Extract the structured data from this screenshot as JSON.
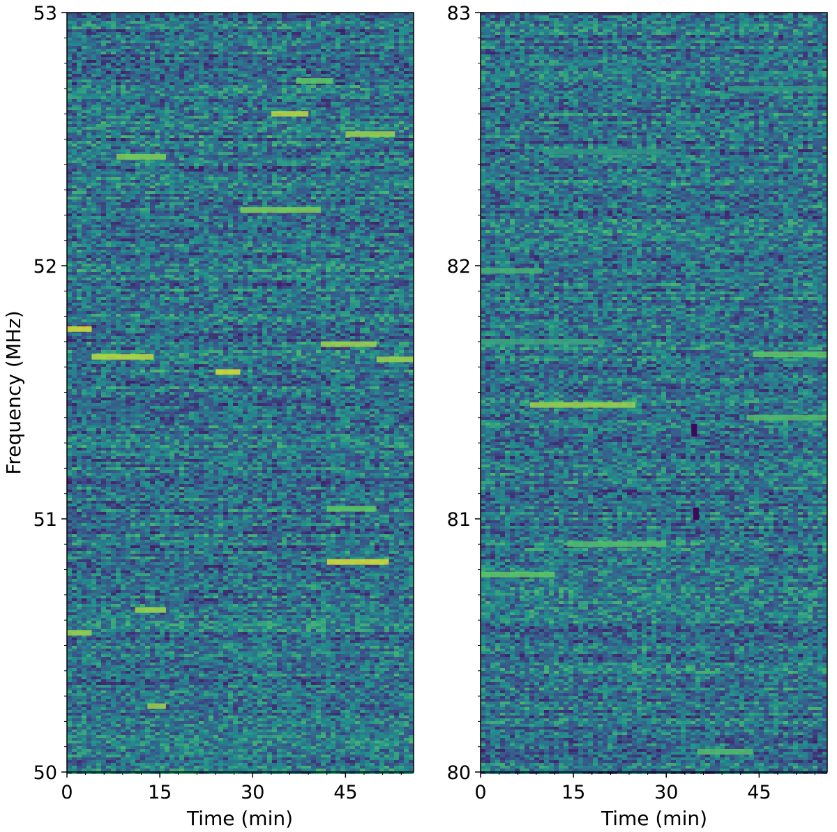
{
  "colors": {
    "colormap": [
      "#440154",
      "#3b528b",
      "#21918c",
      "#5ec962",
      "#fde725"
    ],
    "background": "#2b6f8e",
    "frame": "#000000"
  },
  "chart_data": [
    {
      "type": "heatmap",
      "title": "",
      "xlabel": "Time (min)",
      "ylabel": "Frequency (MHz)",
      "xlim": [
        0,
        56
      ],
      "ylim": [
        50,
        53
      ],
      "x_ticks": [
        "0",
        "15",
        "30",
        "45"
      ],
      "y_ticks": [
        "50",
        "51",
        "52",
        "53"
      ],
      "grid": false,
      "colormap": "viridis",
      "bright_features": [
        {
          "t0": 0,
          "t1": 4,
          "f": 51.75,
          "level": 0.95
        },
        {
          "t0": 4,
          "t1": 14,
          "f": 51.64,
          "level": 0.9
        },
        {
          "t0": 24,
          "t1": 28,
          "f": 51.58,
          "level": 0.95
        },
        {
          "t0": 33,
          "t1": 39,
          "f": 52.6,
          "level": 0.9
        },
        {
          "t0": 42,
          "t1": 52,
          "f": 50.83,
          "level": 0.95
        },
        {
          "t0": 41,
          "t1": 50,
          "f": 51.69,
          "level": 0.85
        },
        {
          "t0": 50,
          "t1": 56,
          "f": 51.63,
          "level": 0.85
        },
        {
          "t0": 28,
          "t1": 41,
          "f": 52.22,
          "level": 0.8
        },
        {
          "t0": 8,
          "t1": 16,
          "f": 52.43,
          "level": 0.8
        },
        {
          "t0": 11,
          "t1": 16,
          "f": 50.64,
          "level": 0.85
        },
        {
          "t0": 0,
          "t1": 4,
          "f": 50.55,
          "level": 0.85
        },
        {
          "t0": 13,
          "t1": 16,
          "f": 50.26,
          "level": 0.85
        },
        {
          "t0": 42,
          "t1": 50,
          "f": 51.04,
          "level": 0.75
        },
        {
          "t0": 37,
          "t1": 43,
          "f": 52.73,
          "level": 0.75
        },
        {
          "t0": 45,
          "t1": 53,
          "f": 52.52,
          "level": 0.85
        }
      ]
    },
    {
      "type": "heatmap",
      "title": "",
      "xlabel": "Time (min)",
      "ylabel": "",
      "xlim": [
        0,
        56
      ],
      "ylim": [
        80,
        83
      ],
      "x_ticks": [
        "0",
        "15",
        "30",
        "45"
      ],
      "y_ticks": [
        "80",
        "81",
        "82",
        "83"
      ],
      "grid": false,
      "colormap": "viridis",
      "bright_features": [
        {
          "t0": 8,
          "t1": 25,
          "f": 81.45,
          "level": 0.85
        },
        {
          "t0": 44,
          "t1": 56,
          "f": 81.65,
          "level": 0.75
        },
        {
          "t0": 43,
          "t1": 56,
          "f": 81.4,
          "level": 0.7
        },
        {
          "t0": 0,
          "t1": 12,
          "f": 80.78,
          "level": 0.75
        },
        {
          "t0": 14,
          "t1": 30,
          "f": 80.9,
          "level": 0.7
        },
        {
          "t0": 0,
          "t1": 10,
          "f": 81.98,
          "level": 0.65
        },
        {
          "t0": 35,
          "t1": 44,
          "f": 80.08,
          "level": 0.7
        },
        {
          "t0": 0,
          "t1": 20,
          "f": 81.7,
          "level": 0.6
        },
        {
          "t0": 10,
          "t1": 30,
          "f": 82.45,
          "level": 0.55
        },
        {
          "t0": 40,
          "t1": 56,
          "f": 82.7,
          "level": 0.55
        }
      ],
      "dark_features": [
        {
          "t": 34.5,
          "f": 81.35
        },
        {
          "t": 34.8,
          "f": 81.02
        }
      ]
    }
  ]
}
